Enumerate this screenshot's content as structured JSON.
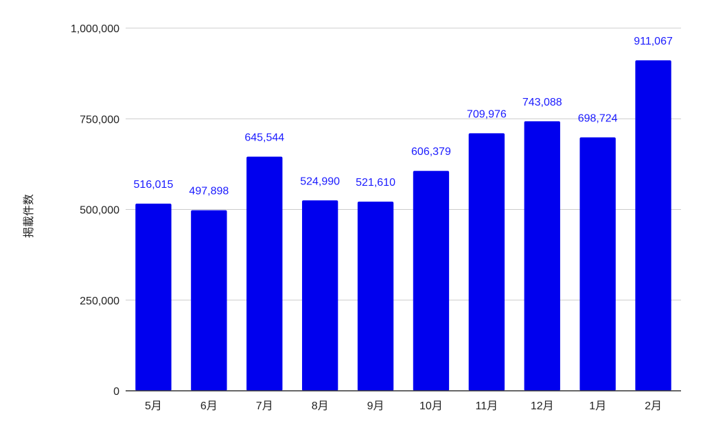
{
  "chart_data": {
    "type": "bar",
    "title": "",
    "xlabel": "",
    "ylabel": "掲載件数",
    "categories": [
      "5月",
      "6月",
      "7月",
      "8月",
      "9月",
      "10月",
      "11月",
      "12月",
      "1月",
      "2月"
    ],
    "values": [
      516015,
      497898,
      645544,
      524990,
      521610,
      606379,
      709976,
      743088,
      698724,
      911067
    ],
    "data_labels": [
      "516,015",
      "497,898",
      "645,544",
      "524,990",
      "521,610",
      "606,379",
      "709,976",
      "743,088",
      "698,724",
      "911,067"
    ],
    "ylim": [
      0,
      1000000
    ],
    "yticks": [
      0,
      250000,
      500000,
      750000,
      1000000
    ],
    "ytick_labels": [
      "0",
      "250,000",
      "500,000",
      "750,000",
      "1,000,000"
    ],
    "grid": true,
    "legend": "none",
    "colors": {
      "bar": "#0000ee",
      "data_label": "#1a1aff",
      "grid": "#cccccc",
      "axis": "#333333"
    }
  }
}
